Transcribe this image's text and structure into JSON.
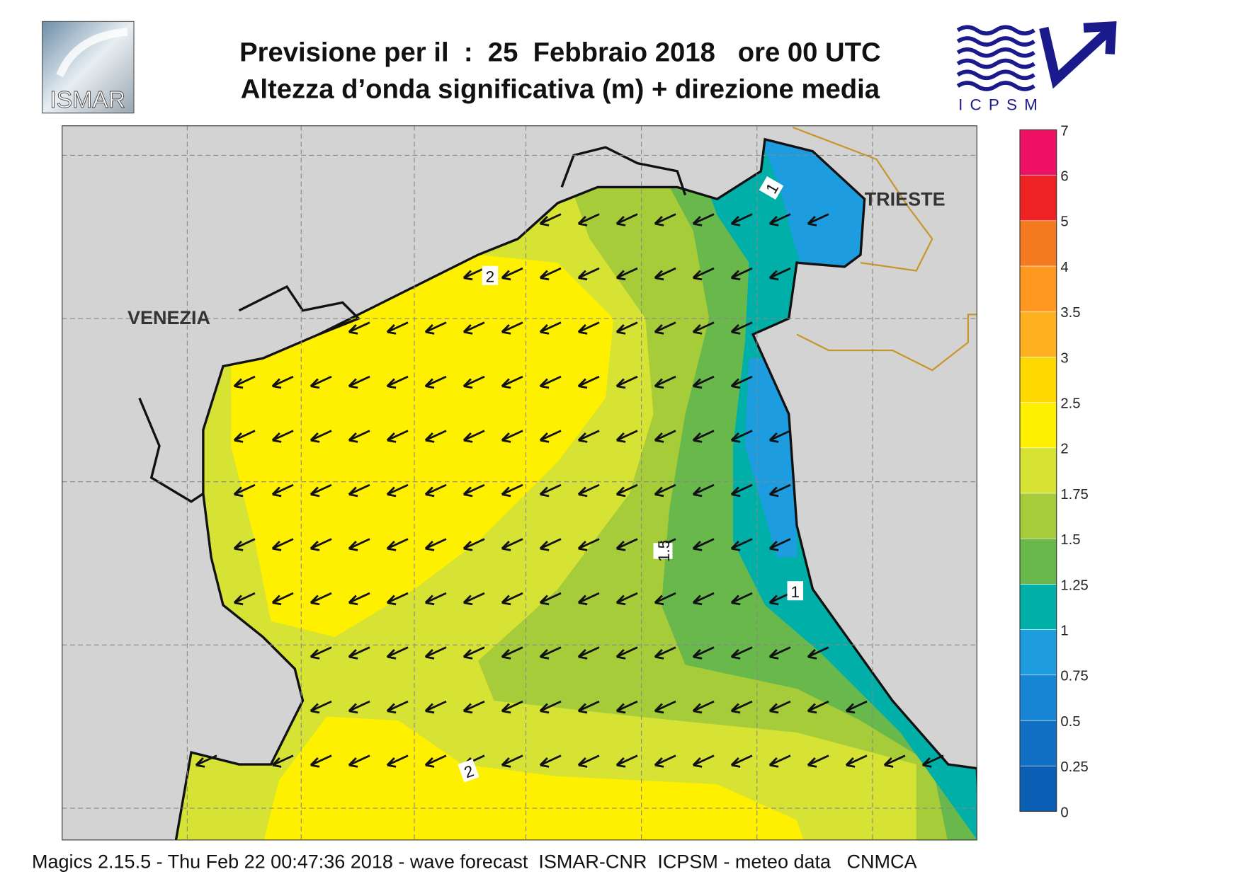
{
  "header": {
    "title": "Previsione per il  :  25  Febbraio 2018   ore 00 UTC",
    "subtitle": "Altezza d’onda significativa (m) + direzione media"
  },
  "logos": {
    "left": "ISMAR",
    "right": "ICPSM"
  },
  "map": {
    "place_labels": [
      "VENEZIA",
      "TRIESTE"
    ],
    "contour_labels": [
      2,
      2,
      1.5,
      1,
      1
    ]
  },
  "colorbar": {
    "ticks": [
      0,
      0.25,
      0.5,
      0.75,
      1,
      1.25,
      1.5,
      1.75,
      2,
      2.5,
      3,
      3.5,
      4,
      5,
      6,
      7
    ],
    "colors": [
      "#0a5fb4",
      "#1070c4",
      "#1685d4",
      "#1e9ce0",
      "#00b0a8",
      "#68b84c",
      "#a6cc3a",
      "#d6e234",
      "#fff000",
      "#ffd800",
      "#ffb020",
      "#ff9820",
      "#f47a20",
      "#ee2222",
      "#ee1166"
    ]
  },
  "footer": "Magics 2.15.5 - Thu Feb 22 00:47:36 2018 - wave forecast  ISMAR-CNR  ICPSM - meteo data   CNMCA"
}
